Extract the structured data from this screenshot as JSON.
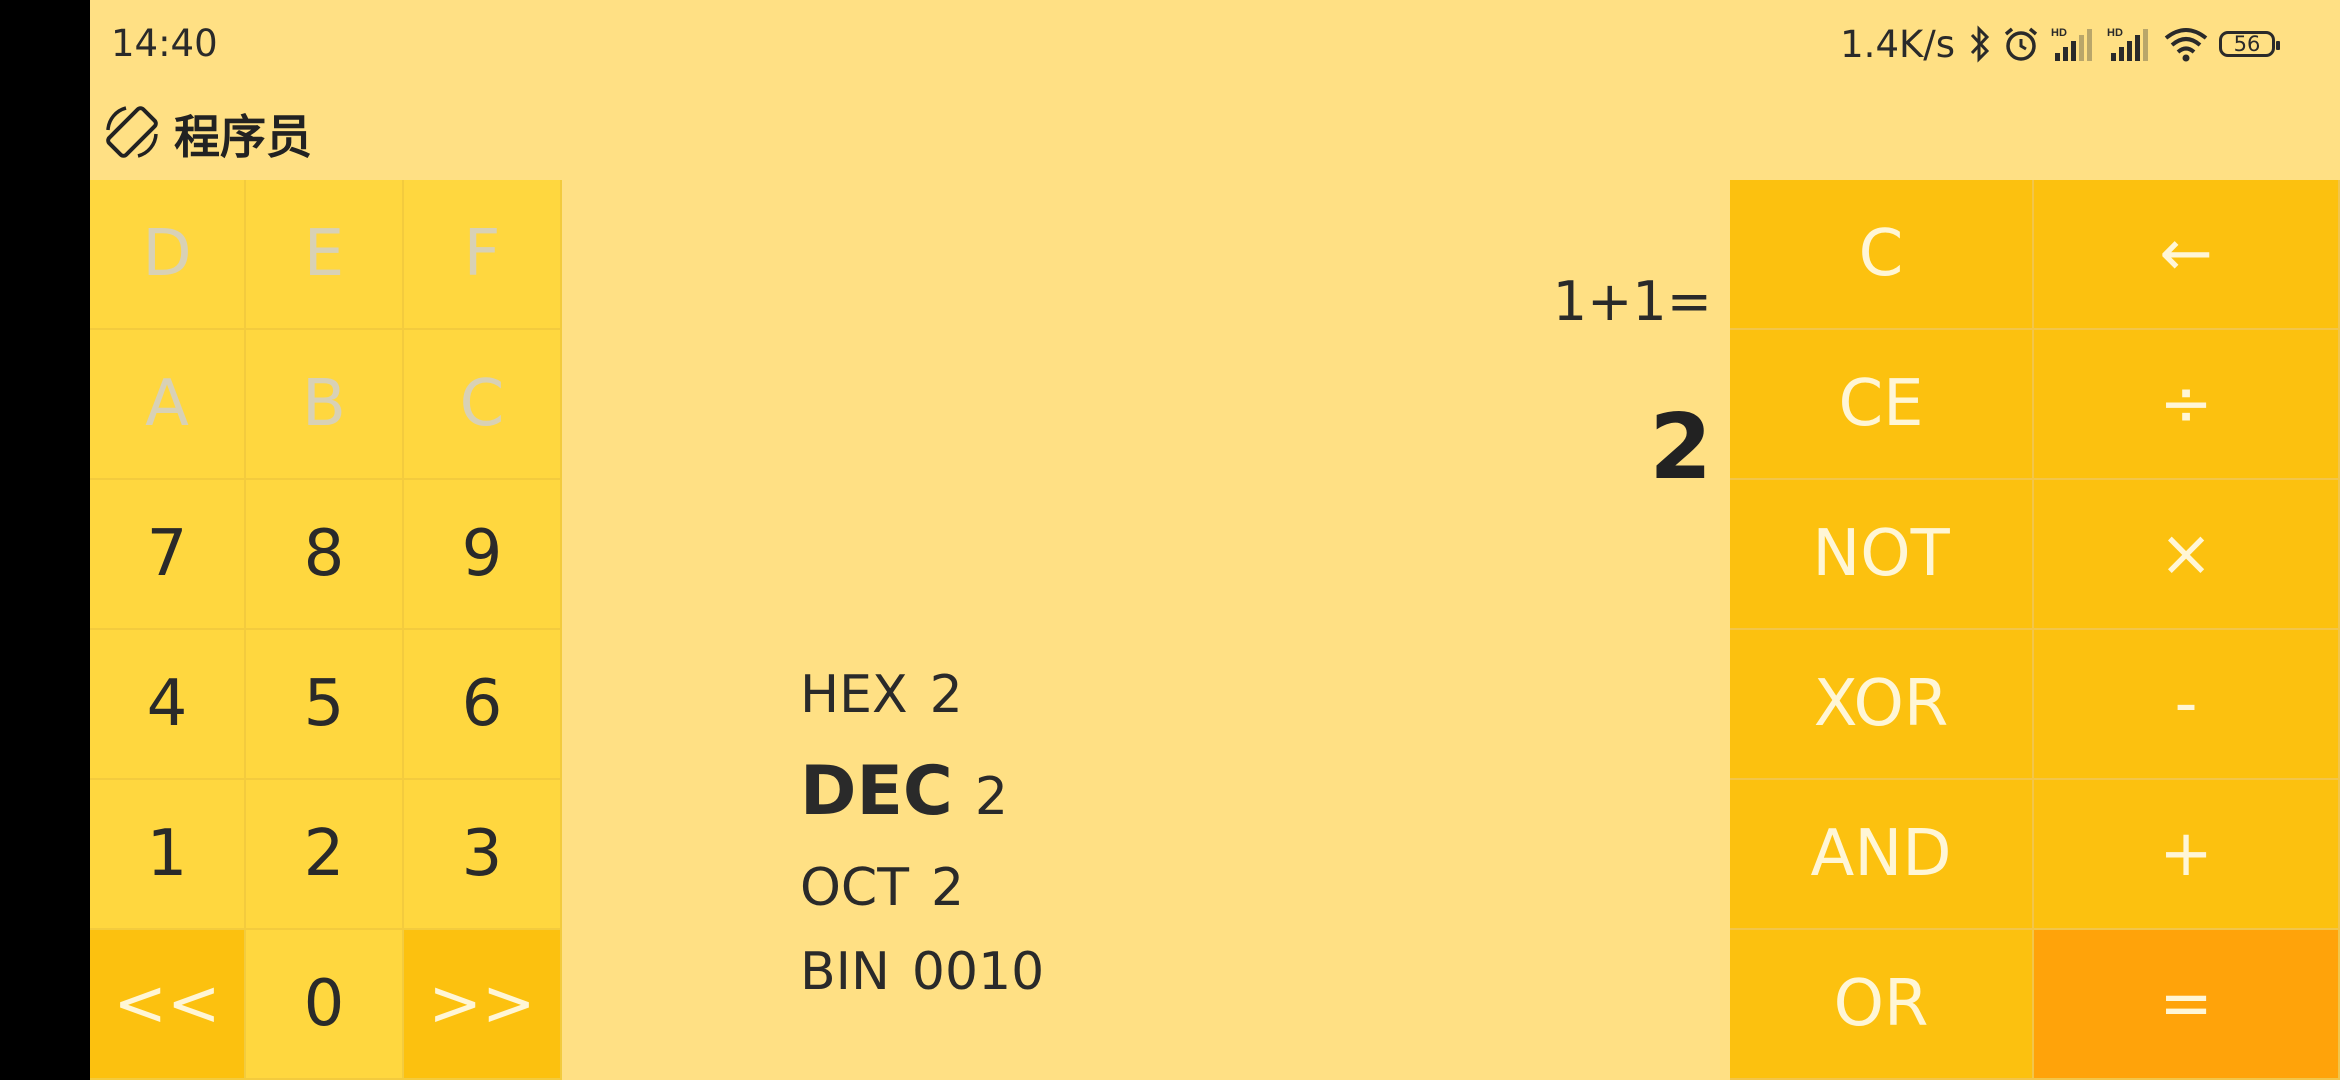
{
  "status_bar": {
    "time": "14:40",
    "net_speed": "1.4K/s",
    "battery": "56"
  },
  "app": {
    "title": "程序员"
  },
  "keypad_left": [
    {
      "label": "D",
      "state": "disabled"
    },
    {
      "label": "E",
      "state": "disabled"
    },
    {
      "label": "F",
      "state": "disabled"
    },
    {
      "label": "A",
      "state": "disabled"
    },
    {
      "label": "B",
      "state": "disabled"
    },
    {
      "label": "C",
      "state": "disabled"
    },
    {
      "label": "7",
      "state": "normal"
    },
    {
      "label": "8",
      "state": "normal"
    },
    {
      "label": "9",
      "state": "normal"
    },
    {
      "label": "4",
      "state": "normal"
    },
    {
      "label": "5",
      "state": "normal"
    },
    {
      "label": "6",
      "state": "normal"
    },
    {
      "label": "1",
      "state": "normal"
    },
    {
      "label": "2",
      "state": "normal"
    },
    {
      "label": "3",
      "state": "normal"
    },
    {
      "label": "<<",
      "state": "shift"
    },
    {
      "label": "0",
      "state": "normal"
    },
    {
      "label": ">>",
      "state": "shift"
    }
  ],
  "keypad_right": [
    {
      "label": "C",
      "role": "clear"
    },
    {
      "label": "←",
      "role": "backspace"
    },
    {
      "label": "CE",
      "role": "clear-entry"
    },
    {
      "label": "÷",
      "role": "divide"
    },
    {
      "label": "NOT",
      "role": "not"
    },
    {
      "label": "×",
      "role": "multiply"
    },
    {
      "label": "XOR",
      "role": "xor"
    },
    {
      "label": "-",
      "role": "subtract"
    },
    {
      "label": "AND",
      "role": "and"
    },
    {
      "label": "+",
      "role": "add"
    },
    {
      "label": "OR",
      "role": "or"
    },
    {
      "label": "=",
      "role": "equals"
    }
  ],
  "display": {
    "expression": "1+1=",
    "result": "2"
  },
  "bases": {
    "hex": {
      "label": "HEX",
      "value": "2"
    },
    "dec": {
      "label": "DEC",
      "value": "2"
    },
    "oct": {
      "label": "OCT",
      "value": "2"
    },
    "bin": {
      "label": "BIN",
      "value": "0010"
    }
  },
  "colors": {
    "background": "#FFE084",
    "key_light": "#FFD73F",
    "key_dark": "#FCC10F",
    "key_equals": "#FFA30A"
  }
}
